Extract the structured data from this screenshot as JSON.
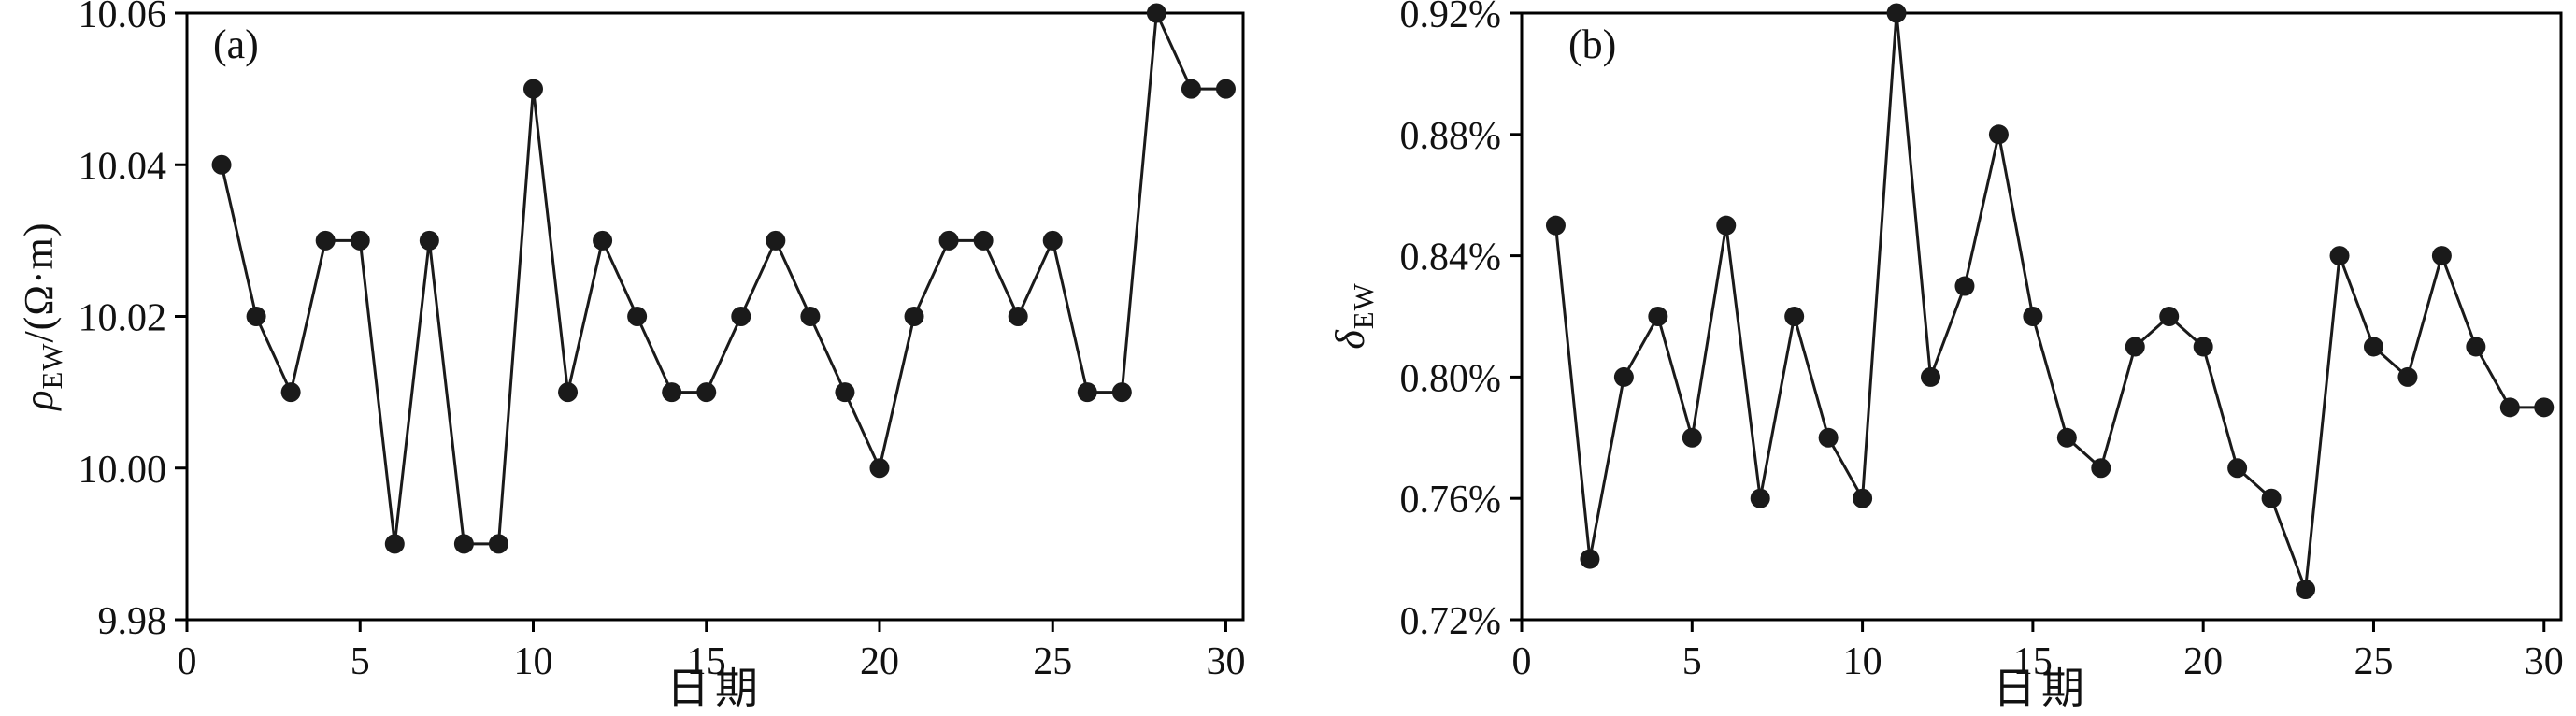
{
  "figure": {
    "background": "#ffffff",
    "axis_color": "#000000",
    "line_color": "#1a1a1a",
    "marker_color": "#1a1a1a"
  },
  "chart_data": [
    {
      "type": "line",
      "panel_label": "(a)",
      "xlabel": "日期",
      "ylabel_symbol": "ρ",
      "ylabel_subscript": "EW",
      "ylabel_suffix": "/(Ω·m)",
      "x": [
        1,
        2,
        3,
        4,
        5,
        6,
        7,
        8,
        9,
        10,
        11,
        12,
        13,
        14,
        15,
        16,
        17,
        18,
        19,
        20,
        21,
        22,
        23,
        24,
        25,
        26,
        27,
        28,
        29,
        30
      ],
      "values": [
        10.04,
        10.02,
        10.01,
        10.03,
        10.03,
        9.99,
        10.03,
        9.99,
        9.99,
        10.05,
        10.01,
        10.03,
        10.02,
        10.01,
        10.01,
        10.02,
        10.03,
        10.02,
        10.01,
        10.0,
        10.02,
        10.03,
        10.03,
        10.02,
        10.03,
        10.01,
        10.01,
        10.06,
        10.05,
        10.05
      ],
      "xlim": [
        0,
        30.5
      ],
      "ylim": [
        9.98,
        10.06
      ],
      "xticks": [
        0,
        5,
        10,
        15,
        20,
        25,
        30
      ],
      "yticks": [
        9.98,
        10.0,
        10.02,
        10.04,
        10.06
      ],
      "ytick_suffix": "",
      "marker": "circle",
      "grid": false,
      "legend": "none"
    },
    {
      "type": "line",
      "panel_label": "(b)",
      "xlabel": "日期",
      "ylabel_symbol": "δ",
      "ylabel_subscript": "EW",
      "ylabel_suffix": "",
      "x": [
        1,
        2,
        3,
        4,
        5,
        6,
        7,
        8,
        9,
        10,
        11,
        12,
        13,
        14,
        15,
        16,
        17,
        18,
        19,
        20,
        21,
        22,
        23,
        24,
        25,
        26,
        27,
        28,
        29,
        30
      ],
      "values": [
        0.85,
        0.74,
        0.8,
        0.82,
        0.78,
        0.85,
        0.76,
        0.82,
        0.78,
        0.76,
        0.92,
        0.8,
        0.83,
        0.88,
        0.82,
        0.78,
        0.77,
        0.81,
        0.82,
        0.81,
        0.77,
        0.76,
        0.73,
        0.84,
        0.81,
        0.8,
        0.84,
        0.81,
        0.79,
        0.79
      ],
      "xlim": [
        0,
        30.5
      ],
      "ylim": [
        0.72,
        0.92
      ],
      "xticks": [
        0,
        5,
        10,
        15,
        20,
        25,
        30
      ],
      "yticks": [
        0.72,
        0.76,
        0.8,
        0.84,
        0.88,
        0.92
      ],
      "ytick_suffix": "%",
      "marker": "circle",
      "grid": false,
      "legend": "none"
    }
  ]
}
